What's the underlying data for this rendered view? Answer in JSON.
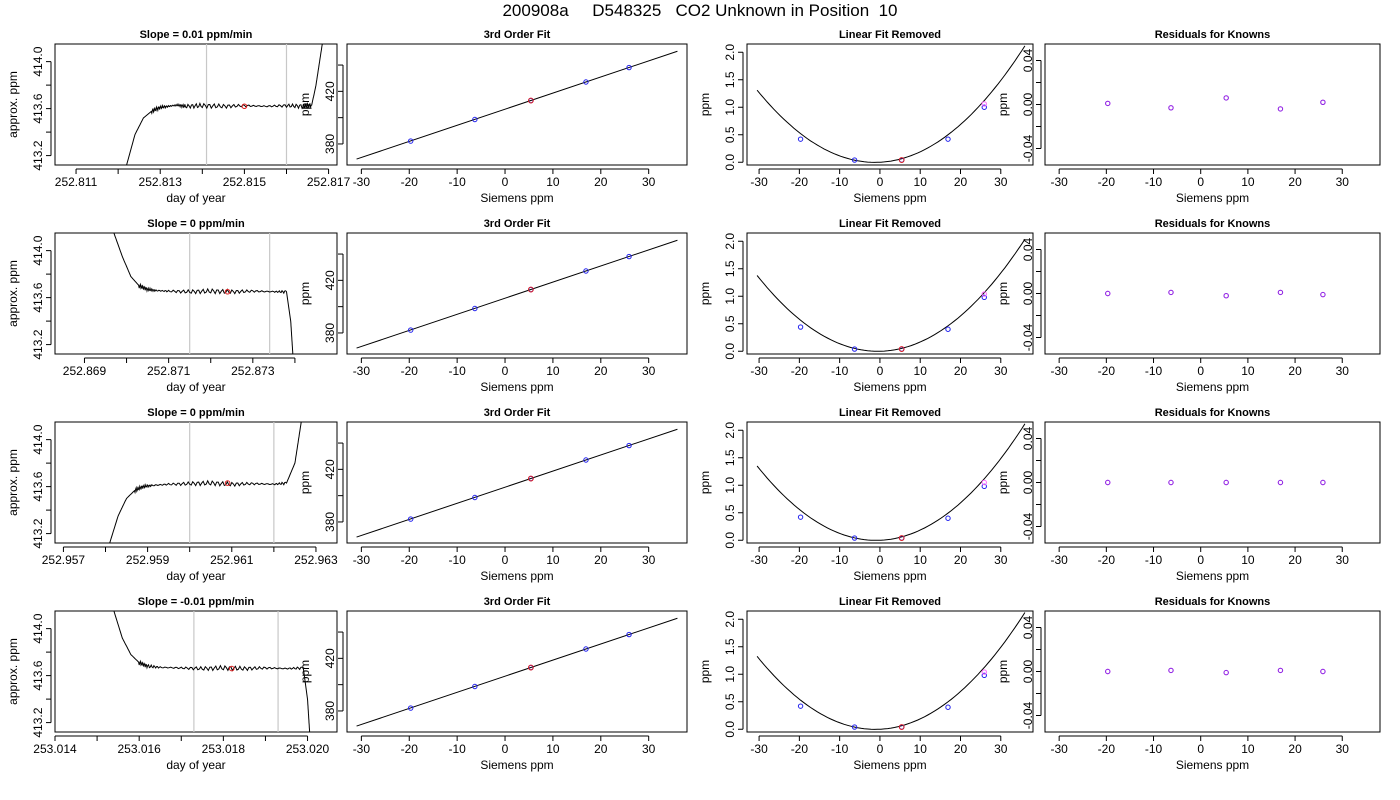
{
  "page": {
    "title": "200908a     D548325   CO2 Unknown in Position  10"
  },
  "chart_data": [
    {
      "type": "line",
      "title": "Slope =  0.01  ppm/min",
      "xlabel": "day of year",
      "ylabel": "approx. ppm",
      "xlim": [
        252.8105,
        252.8172
      ],
      "ylim": [
        413.12,
        414.15
      ],
      "xticks": [
        252.811,
        252.812,
        252.813,
        252.814,
        252.815,
        252.816,
        252.817
      ],
      "xticklabels": [
        "252.811",
        "",
        "252.813",
        "",
        "252.815",
        "",
        "252.817"
      ],
      "yticks": [
        413.2,
        413.4,
        413.6,
        413.8,
        414.0
      ],
      "yticklabels": [
        "413.2",
        "",
        "413.6",
        "",
        "414.0"
      ],
      "vlines": [
        252.8141,
        252.816
      ],
      "series": [
        {
          "x": [
            252.8122,
            252.8124,
            252.8126,
            252.8128,
            252.813,
            252.8132,
            252.8134,
            252.8136,
            252.814,
            252.8145,
            252.815,
            252.8155,
            252.816,
            252.8164,
            252.8166,
            252.8167,
            252.81685
          ],
          "y": [
            413.12,
            413.38,
            413.52,
            413.58,
            413.61,
            413.62,
            413.63,
            413.62,
            413.625,
            413.62,
            413.625,
            413.62,
            413.625,
            413.62,
            413.63,
            413.8,
            414.15
          ]
        }
      ],
      "markers": [
        {
          "x": 252.815,
          "y": 413.62
        }
      ]
    },
    {
      "type": "line",
      "title": "Slope =  0  ppm/min",
      "xlabel": "day of year",
      "ylabel": "approx. ppm",
      "xlim": [
        252.8683,
        252.875
      ],
      "ylim": [
        413.12,
        414.15
      ],
      "xticks": [
        252.869,
        252.87,
        252.871,
        252.872,
        252.873,
        252.874
      ],
      "xticklabels": [
        "252.869",
        "",
        "252.871",
        "",
        "252.873",
        ""
      ],
      "yticks": [
        413.2,
        413.4,
        413.6,
        413.8,
        414.0
      ],
      "yticklabels": [
        "413.2",
        "",
        "413.6",
        "",
        "414.0"
      ],
      "vlines": [
        252.8715,
        252.8734
      ],
      "series": [
        {
          "x": [
            252.8697,
            252.8699,
            252.8701,
            252.8703,
            252.8705,
            252.8707,
            252.871,
            252.8715,
            252.872,
            252.8725,
            252.873,
            252.8735,
            252.8738,
            252.8739,
            252.87395
          ],
          "y": [
            414.15,
            413.95,
            413.78,
            413.7,
            413.67,
            413.66,
            413.655,
            413.65,
            413.655,
            413.65,
            413.655,
            413.65,
            413.65,
            413.4,
            413.12
          ]
        }
      ],
      "markers": [
        {
          "x": 252.8724,
          "y": 413.65
        }
      ]
    },
    {
      "type": "line",
      "title": "Slope =  0  ppm/min",
      "xlabel": "day of year",
      "ylabel": "approx. ppm",
      "xlim": [
        252.9568,
        252.9635
      ],
      "ylim": [
        413.12,
        414.15
      ],
      "xticks": [
        252.957,
        252.958,
        252.959,
        252.96,
        252.961,
        252.962,
        252.963
      ],
      "xticklabels": [
        "252.957",
        "",
        "252.959",
        "",
        "252.961",
        "",
        "252.963"
      ],
      "yticks": [
        413.2,
        413.4,
        413.6,
        413.8,
        414.0
      ],
      "yticklabels": [
        "413.2",
        "",
        "413.6",
        "",
        "414.0"
      ],
      "vlines": [
        252.96,
        252.962
      ],
      "series": [
        {
          "x": [
            252.9581,
            252.9583,
            252.9585,
            252.9587,
            252.9589,
            252.9591,
            252.9595,
            252.96,
            252.9605,
            252.961,
            252.9615,
            252.962,
            252.9623,
            252.9625,
            252.96265
          ],
          "y": [
            413.12,
            413.35,
            413.5,
            413.57,
            413.6,
            413.61,
            413.62,
            413.625,
            413.63,
            413.62,
            413.625,
            413.62,
            413.63,
            413.8,
            414.15
          ]
        }
      ],
      "markers": [
        {
          "x": 252.9609,
          "y": 413.63
        }
      ]
    },
    {
      "type": "line",
      "title": "Slope =  -0.01  ppm/min",
      "xlabel": "day of year",
      "ylabel": "approx. ppm",
      "xlim": [
        253.014,
        253.0207
      ],
      "ylim": [
        413.12,
        414.15
      ],
      "xticks": [
        253.014,
        253.015,
        253.016,
        253.017,
        253.018,
        253.019,
        253.02
      ],
      "xticklabels": [
        "253.014",
        "",
        "253.016",
        "",
        "253.018",
        "",
        "253.020"
      ],
      "yticks": [
        413.2,
        413.4,
        413.6,
        413.8,
        414.0
      ],
      "yticklabels": [
        "413.2",
        "",
        "413.6",
        "",
        "414.0"
      ],
      "vlines": [
        253.0173,
        253.0193
      ],
      "series": [
        {
          "x": [
            253.0154,
            253.0156,
            253.0158,
            253.016,
            253.0162,
            253.0165,
            253.017,
            253.0175,
            253.018,
            253.0185,
            253.019,
            253.0195,
            253.0199,
            253.02,
            253.02005
          ],
          "y": [
            414.15,
            413.92,
            413.78,
            413.71,
            413.68,
            413.67,
            413.665,
            413.66,
            413.665,
            413.66,
            413.665,
            413.66,
            413.665,
            413.4,
            413.12
          ]
        }
      ],
      "markers": [
        {
          "x": 253.0182,
          "y": 413.66
        }
      ]
    },
    {
      "type": "scatter",
      "title": "3rd Order Fit",
      "xlabel": "Siemens ppm",
      "ylabel": "ppm",
      "xlim": [
        -33,
        38
      ],
      "ylim": [
        364,
        456
      ],
      "xticks": [
        -30,
        -20,
        -10,
        0,
        10,
        20,
        30
      ],
      "yticks": [
        380,
        400,
        420,
        440
      ],
      "yticklabels": [
        "380",
        "",
        "420",
        ""
      ],
      "curve": {
        "x": [
          -31,
          36
        ],
        "y": [
          368.5,
          450.5
        ]
      },
      "points": {
        "x": [
          -19.7,
          -6.3,
          5.4,
          16.9,
          25.9
        ],
        "y": [
          382.2,
          398.6,
          413.0,
          427.1,
          438.1
        ]
      },
      "highlight": {
        "x": [
          5.4
        ],
        "y": [
          413.0
        ]
      }
    },
    {
      "type": "scatter",
      "title": "3rd Order Fit",
      "xlabel": "Siemens ppm",
      "ylabel": "ppm",
      "xlim": [
        -33,
        38
      ],
      "ylim": [
        364,
        456
      ],
      "xticks": [
        -30,
        -20,
        -10,
        0,
        10,
        20,
        30
      ],
      "yticks": [
        380,
        400,
        420,
        440
      ],
      "yticklabels": [
        "380",
        "",
        "420",
        ""
      ],
      "curve": {
        "x": [
          -31,
          36
        ],
        "y": [
          368.5,
          450.5
        ]
      },
      "points": {
        "x": [
          -19.7,
          -6.3,
          5.4,
          16.9,
          25.9
        ],
        "y": [
          382.2,
          398.6,
          413.0,
          427.1,
          438.1
        ]
      },
      "highlight": {
        "x": [
          5.4
        ],
        "y": [
          413.0
        ]
      }
    },
    {
      "type": "scatter",
      "title": "3rd Order Fit",
      "xlabel": "Siemens ppm",
      "ylabel": "ppm",
      "xlim": [
        -33,
        38
      ],
      "ylim": [
        364,
        456
      ],
      "xticks": [
        -30,
        -20,
        -10,
        0,
        10,
        20,
        30
      ],
      "yticks": [
        380,
        400,
        420,
        440
      ],
      "yticklabels": [
        "380",
        "",
        "420",
        ""
      ],
      "curve": {
        "x": [
          -31,
          36
        ],
        "y": [
          368.5,
          450.5
        ]
      },
      "points": {
        "x": [
          -19.7,
          -6.3,
          5.4,
          16.9,
          25.9
        ],
        "y": [
          382.2,
          398.6,
          413.0,
          427.1,
          438.1
        ]
      },
      "highlight": {
        "x": [
          5.4
        ],
        "y": [
          413.0
        ]
      }
    },
    {
      "type": "scatter",
      "title": "3rd Order Fit",
      "xlabel": "Siemens ppm",
      "ylabel": "ppm",
      "xlim": [
        -33,
        38
      ],
      "ylim": [
        364,
        456
      ],
      "xticks": [
        -30,
        -20,
        -10,
        0,
        10,
        20,
        30
      ],
      "yticks": [
        380,
        400,
        420,
        440
      ],
      "yticklabels": [
        "380",
        "",
        "420",
        ""
      ],
      "curve": {
        "x": [
          -31,
          36
        ],
        "y": [
          368.5,
          450.5
        ]
      },
      "points": {
        "x": [
          -19.7,
          -6.3,
          5.4,
          16.9,
          25.9
        ],
        "y": [
          382.2,
          398.6,
          413.0,
          427.1,
          438.1
        ]
      },
      "highlight": {
        "x": [
          5.4
        ],
        "y": [
          413.0
        ]
      }
    },
    {
      "type": "scatter",
      "title": "Linear Fit Removed",
      "xlabel": "Siemens ppm",
      "ylabel": "ppm",
      "xlim": [
        -33,
        38
      ],
      "ylim": [
        -0.05,
        2.15
      ],
      "xticks": [
        -30,
        -20,
        -10,
        0,
        10,
        20,
        30
      ],
      "yticks": [
        0.0,
        0.5,
        1.0,
        1.5,
        2.0
      ],
      "yticklabels": [
        "0.0",
        "0.5",
        "1.0",
        "1.5",
        "2.0"
      ],
      "curve_poly": {
        "a": 0.00153,
        "b": 0.0037,
        "c": 0.0,
        "x0": -30.5,
        "x1": 36
      },
      "points": {
        "x": [
          -19.7,
          -6.3,
          5.4,
          16.9,
          25.9
        ],
        "y": [
          0.42,
          0.04,
          0.04,
          0.42,
          1.0
        ]
      },
      "highlight": {
        "x": [
          5.4
        ],
        "y": [
          0.04
        ]
      },
      "magenta": {
        "x": [
          25.9
        ],
        "y": [
          1.06
        ]
      }
    },
    {
      "type": "scatter",
      "title": "Linear Fit Removed",
      "xlabel": "Siemens ppm",
      "ylabel": "ppm",
      "xlim": [
        -33,
        38
      ],
      "ylim": [
        -0.05,
        2.15
      ],
      "xticks": [
        -30,
        -20,
        -10,
        0,
        10,
        20,
        30
      ],
      "yticks": [
        0.0,
        0.5,
        1.0,
        1.5,
        2.0
      ],
      "yticklabels": [
        "0.0",
        "0.5",
        "1.0",
        "1.5",
        "2.0"
      ],
      "curve_poly": {
        "a": 0.00153,
        "b": 0.0015,
        "c": 0.0,
        "x0": -30.5,
        "x1": 36
      },
      "points": {
        "x": [
          -19.7,
          -6.3,
          5.4,
          16.9,
          25.9
        ],
        "y": [
          0.44,
          0.04,
          0.04,
          0.4,
          0.98
        ]
      },
      "highlight": {
        "x": [
          5.4
        ],
        "y": [
          0.04
        ]
      },
      "magenta": {
        "x": [
          25.9
        ],
        "y": [
          1.04
        ]
      }
    },
    {
      "type": "scatter",
      "title": "Linear Fit Removed",
      "xlabel": "Siemens ppm",
      "ylabel": "ppm",
      "xlim": [
        -33,
        38
      ],
      "ylim": [
        -0.05,
        2.15
      ],
      "xticks": [
        -30,
        -20,
        -10,
        0,
        10,
        20,
        30
      ],
      "yticks": [
        0.0,
        0.5,
        1.0,
        1.5,
        2.0
      ],
      "yticklabels": [
        "0.0",
        "0.5",
        "1.0",
        "1.5",
        "2.0"
      ],
      "curve_poly": {
        "a": 0.00155,
        "b": 0.003,
        "c": 0.0,
        "x0": -30.5,
        "x1": 36
      },
      "points": {
        "x": [
          -19.7,
          -6.3,
          5.4,
          16.9,
          25.9
        ],
        "y": [
          0.42,
          0.04,
          0.04,
          0.4,
          0.98
        ]
      },
      "highlight": {
        "x": [
          5.4
        ],
        "y": [
          0.04
        ]
      },
      "magenta": {
        "x": [
          25.9
        ],
        "y": [
          1.05
        ]
      }
    },
    {
      "type": "scatter",
      "title": "Linear Fit Removed",
      "xlabel": "Siemens ppm",
      "ylabel": "ppm",
      "xlim": [
        -33,
        38
      ],
      "ylim": [
        -0.05,
        2.15
      ],
      "xticks": [
        -30,
        -20,
        -10,
        0,
        10,
        20,
        30
      ],
      "yticks": [
        0.0,
        0.5,
        1.0,
        1.5,
        2.0
      ],
      "yticklabels": [
        "0.0",
        "0.5",
        "1.0",
        "1.5",
        "2.0"
      ],
      "curve_poly": {
        "a": 0.00154,
        "b": 0.0035,
        "c": 0.0,
        "x0": -30.5,
        "x1": 36
      },
      "points": {
        "x": [
          -19.7,
          -6.3,
          5.4,
          16.9,
          25.9
        ],
        "y": [
          0.42,
          0.04,
          0.04,
          0.4,
          0.98
        ]
      },
      "highlight": {
        "x": [
          5.4
        ],
        "y": [
          0.04
        ]
      },
      "magenta": {
        "x": [
          25.9
        ],
        "y": [
          1.04
        ]
      }
    },
    {
      "type": "scatter",
      "title": "Residuals for Knowns",
      "xlabel": "Siemens ppm",
      "ylabel": "ppm",
      "xlim": [
        -33,
        38
      ],
      "ylim": [
        -0.055,
        0.055
      ],
      "xticks": [
        -30,
        -20,
        -10,
        0,
        10,
        20,
        30
      ],
      "yticks": [
        -0.04,
        -0.02,
        0.0,
        0.02,
        0.04
      ],
      "yticklabels": [
        "-0.04",
        "",
        "0.00",
        "",
        "0.04"
      ],
      "points": {
        "x": [
          -19.7,
          -6.3,
          5.4,
          16.9,
          25.9
        ],
        "y": [
          0.001,
          -0.003,
          0.006,
          -0.004,
          0.002
        ]
      }
    },
    {
      "type": "scatter",
      "title": "Residuals for Knowns",
      "xlabel": "Siemens ppm",
      "ylabel": "ppm",
      "xlim": [
        -33,
        38
      ],
      "ylim": [
        -0.055,
        0.055
      ],
      "xticks": [
        -30,
        -20,
        -10,
        0,
        10,
        20,
        30
      ],
      "yticks": [
        -0.04,
        -0.02,
        0.0,
        0.02,
        0.04
      ],
      "yticklabels": [
        "-0.04",
        "",
        "0.00",
        "",
        "0.04"
      ],
      "points": {
        "x": [
          -19.7,
          -6.3,
          5.4,
          16.9,
          25.9
        ],
        "y": [
          0.0,
          0.001,
          -0.002,
          0.001,
          -0.001
        ]
      }
    },
    {
      "type": "scatter",
      "title": "Residuals for Knowns",
      "xlabel": "Siemens ppm",
      "ylabel": "ppm",
      "xlim": [
        -33,
        38
      ],
      "ylim": [
        -0.055,
        0.055
      ],
      "xticks": [
        -30,
        -20,
        -10,
        0,
        10,
        20,
        30
      ],
      "yticks": [
        -0.04,
        -0.02,
        0.0,
        0.02,
        0.04
      ],
      "yticklabels": [
        "-0.04",
        "",
        "0.00",
        "",
        "0.04"
      ],
      "points": {
        "x": [
          -19.7,
          -6.3,
          5.4,
          16.9,
          25.9
        ],
        "y": [
          0.0,
          0.0,
          0.0,
          0.0,
          0.0
        ]
      }
    },
    {
      "type": "scatter",
      "title": "Residuals for Knowns",
      "xlabel": "Siemens ppm",
      "ylabel": "ppm",
      "xlim": [
        -33,
        38
      ],
      "ylim": [
        -0.055,
        0.055
      ],
      "xticks": [
        -30,
        -20,
        -10,
        0,
        10,
        20,
        30
      ],
      "yticks": [
        -0.04,
        -0.02,
        0.0,
        0.02,
        0.04
      ],
      "yticklabels": [
        "-0.04",
        "",
        "0.00",
        "",
        "0.04"
      ],
      "points": {
        "x": [
          -19.7,
          -6.3,
          5.4,
          16.9,
          25.9
        ],
        "y": [
          0.0,
          0.001,
          -0.001,
          0.001,
          0.0
        ]
      }
    }
  ],
  "colors": {
    "axis": "#000000",
    "line": "#000000",
    "vline": "#c8c8c8",
    "point_blue": "#2222ee",
    "point_red": "#e02020",
    "point_magenta": "#ff66ff",
    "point_purple": "#8a2be2"
  }
}
